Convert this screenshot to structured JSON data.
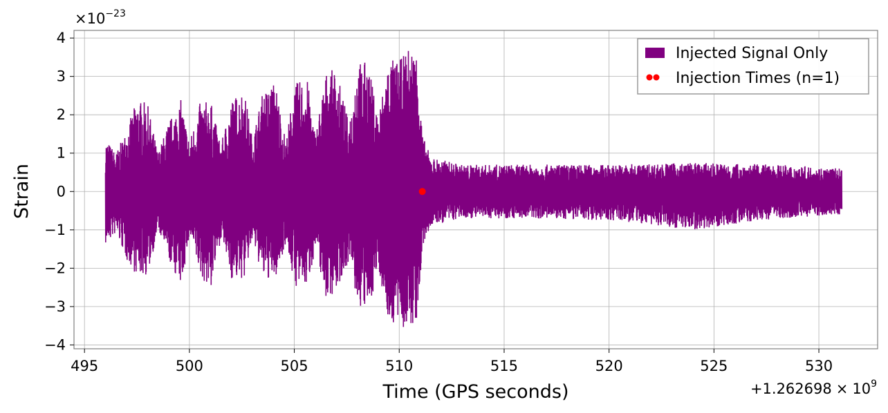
{
  "chart_data": {
    "type": "line",
    "xlabel": "Time (GPS seconds)",
    "ylabel": "Strain",
    "x_offset_label_base": "+1.262698",
    "x_offset_label_times": "×",
    "x_offset_label_exp": "10",
    "x_offset_label_power": "9",
    "y_scale_label_base": "×10",
    "y_scale_label_power": "−23",
    "xlim": [
      494.5,
      532.8
    ],
    "ylim": [
      -4.1,
      4.2
    ],
    "x_ticks": [
      495,
      500,
      505,
      510,
      515,
      520,
      525,
      530
    ],
    "x_tick_labels": [
      "495",
      "500",
      "505",
      "510",
      "515",
      "520",
      "525",
      "530"
    ],
    "y_ticks": [
      -4,
      -3,
      -2,
      -1,
      0,
      1,
      2,
      3,
      4
    ],
    "y_tick_labels": [
      "−4",
      "−3",
      "−2",
      "−1",
      "0",
      "1",
      "2",
      "3",
      "4"
    ],
    "grid": true,
    "legend_position": "top-right",
    "series": [
      {
        "name": "Injected Signal Only",
        "color": "#800080",
        "x_start": 496.0,
        "x_end": 531.1,
        "envelope": [
          [
            496.0,
            1.4
          ],
          [
            496.5,
            1.0
          ],
          [
            497.0,
            1.6
          ],
          [
            497.5,
            2.4
          ],
          [
            498.0,
            2.3
          ],
          [
            498.5,
            1.0
          ],
          [
            499.0,
            1.8
          ],
          [
            499.6,
            2.4
          ],
          [
            500.0,
            1.3
          ],
          [
            500.5,
            2.3
          ],
          [
            501.0,
            2.4
          ],
          [
            501.5,
            1.2
          ],
          [
            502.0,
            2.4
          ],
          [
            502.6,
            2.7
          ],
          [
            503.0,
            1.4
          ],
          [
            503.5,
            2.6
          ],
          [
            504.1,
            2.9
          ],
          [
            504.6,
            1.3
          ],
          [
            505.0,
            2.8
          ],
          [
            505.6,
            3.0
          ],
          [
            506.0,
            1.5
          ],
          [
            506.5,
            3.1
          ],
          [
            507.0,
            3.2
          ],
          [
            507.6,
            1.8
          ],
          [
            508.0,
            3.4
          ],
          [
            508.5,
            3.4
          ],
          [
            509.0,
            2.0
          ],
          [
            509.5,
            3.5
          ],
          [
            510.0,
            3.4
          ],
          [
            510.5,
            3.8
          ],
          [
            510.9,
            3.7
          ],
          [
            511.1,
            1.5
          ],
          [
            511.5,
            0.9
          ],
          [
            513.0,
            0.7
          ],
          [
            516.0,
            0.7
          ],
          [
            520.0,
            0.7
          ],
          [
            524.0,
            0.75
          ],
          [
            528.0,
            0.7
          ],
          [
            531.1,
            0.6
          ]
        ],
        "neg_envelope": [
          [
            496.0,
            -1.4
          ],
          [
            496.5,
            -1.1
          ],
          [
            497.0,
            -1.8
          ],
          [
            497.5,
            -2.2
          ],
          [
            498.0,
            -2.2
          ],
          [
            498.5,
            -1.0
          ],
          [
            499.0,
            -1.8
          ],
          [
            499.6,
            -2.5
          ],
          [
            500.0,
            -1.2
          ],
          [
            500.5,
            -2.2
          ],
          [
            501.0,
            -2.6
          ],
          [
            501.5,
            -1.2
          ],
          [
            502.0,
            -2.3
          ],
          [
            502.6,
            -2.3
          ],
          [
            503.0,
            -1.3
          ],
          [
            503.5,
            -2.3
          ],
          [
            504.1,
            -2.3
          ],
          [
            504.6,
            -1.3
          ],
          [
            505.0,
            -2.5
          ],
          [
            505.6,
            -2.5
          ],
          [
            506.0,
            -1.5
          ],
          [
            506.5,
            -2.8
          ],
          [
            507.0,
            -2.6
          ],
          [
            507.6,
            -1.8
          ],
          [
            508.0,
            -3.0
          ],
          [
            508.5,
            -3.2
          ],
          [
            509.0,
            -2.0
          ],
          [
            509.5,
            -3.5
          ],
          [
            510.0,
            -3.5
          ],
          [
            510.5,
            -3.7
          ],
          [
            510.9,
            -3.3
          ],
          [
            511.1,
            -1.5
          ],
          [
            511.5,
            -0.9
          ],
          [
            513.0,
            -0.7
          ],
          [
            516.0,
            -0.7
          ],
          [
            520.0,
            -0.75
          ],
          [
            524.0,
            -1.0
          ],
          [
            528.0,
            -0.7
          ],
          [
            531.1,
            -0.6
          ]
        ]
      },
      {
        "name": "Injection Times (n=1)",
        "color": "#ff0000",
        "type": "scatter",
        "x": [
          511.1
        ],
        "y": [
          0.0
        ]
      }
    ]
  }
}
